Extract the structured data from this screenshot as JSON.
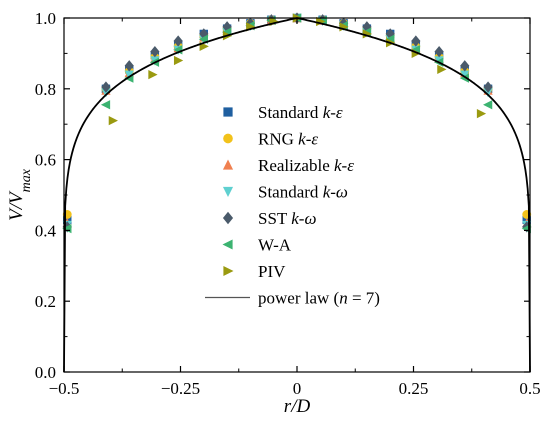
{
  "chart_data": {
    "type": "scatter",
    "title": "",
    "xlabel": "r/D",
    "ylabel": "V/V_max",
    "xlim": [
      -0.5,
      0.5
    ],
    "ylim": [
      0.0,
      1.0
    ],
    "x_ticks": [
      "-0.5",
      "-0.25",
      "0",
      "0.25",
      "0.5"
    ],
    "y_ticks": [
      "0.0",
      "0.2",
      "0.4",
      "0.6",
      "0.8",
      "1.0"
    ],
    "grid": false,
    "legend_position": "center",
    "series": [
      {
        "name": "Standard k-ε",
        "marker": "square",
        "color": "#1f5fa0",
        "x": [
          -0.493,
          -0.41,
          -0.36,
          -0.305,
          -0.255,
          -0.2,
          -0.15,
          -0.1,
          -0.055,
          0.0,
          0.055,
          0.1,
          0.15,
          0.2,
          0.255,
          0.305,
          0.36,
          0.41,
          0.493
        ],
        "y": [
          0.43,
          0.8,
          0.855,
          0.895,
          0.925,
          0.955,
          0.97,
          0.985,
          0.995,
          1.0,
          0.995,
          0.985,
          0.97,
          0.955,
          0.925,
          0.895,
          0.855,
          0.8,
          0.43
        ]
      },
      {
        "name": "RNG k-ε",
        "marker": "circle",
        "color": "#f2c21b",
        "x": [
          -0.493,
          -0.41,
          -0.36,
          -0.305,
          -0.255,
          -0.2,
          -0.15,
          -0.1,
          -0.055,
          0.0,
          0.055,
          0.1,
          0.15,
          0.2,
          0.255,
          0.305,
          0.36,
          0.41,
          0.493
        ],
        "y": [
          0.445,
          0.8,
          0.85,
          0.89,
          0.92,
          0.95,
          0.97,
          0.985,
          0.995,
          1.0,
          0.995,
          0.985,
          0.97,
          0.95,
          0.92,
          0.89,
          0.85,
          0.8,
          0.445
        ]
      },
      {
        "name": "Realizable k-ε",
        "marker": "triangle-up",
        "color": "#f08050",
        "x": [
          -0.493,
          -0.41,
          -0.36,
          -0.305,
          -0.255,
          -0.2,
          -0.15,
          -0.1,
          -0.055,
          0.0,
          0.055,
          0.1,
          0.15,
          0.2,
          0.255,
          0.305,
          0.36,
          0.41,
          0.493
        ],
        "y": [
          0.42,
          0.795,
          0.845,
          0.885,
          0.915,
          0.945,
          0.965,
          0.98,
          0.993,
          1.0,
          0.993,
          0.98,
          0.965,
          0.945,
          0.915,
          0.885,
          0.845,
          0.795,
          0.42
        ]
      },
      {
        "name": "Standard k-ω",
        "marker": "triangle-down",
        "color": "#5fd0d0",
        "x": [
          -0.493,
          -0.41,
          -0.36,
          -0.305,
          -0.255,
          -0.2,
          -0.15,
          -0.1,
          -0.055,
          0.0,
          0.055,
          0.1,
          0.15,
          0.2,
          0.255,
          0.305,
          0.36,
          0.41,
          0.493
        ],
        "y": [
          0.415,
          0.79,
          0.84,
          0.88,
          0.91,
          0.94,
          0.96,
          0.978,
          0.992,
          1.0,
          0.992,
          0.978,
          0.96,
          0.94,
          0.91,
          0.88,
          0.84,
          0.79,
          0.415
        ]
      },
      {
        "name": "SST k-ω",
        "marker": "diamond",
        "color": "#4a5a6a",
        "x": [
          -0.493,
          -0.41,
          -0.36,
          -0.305,
          -0.255,
          -0.2,
          -0.15,
          -0.1,
          -0.055,
          0.0,
          0.055,
          0.1,
          0.15,
          0.2,
          0.255,
          0.305,
          0.36,
          0.41,
          0.493
        ],
        "y": [
          0.41,
          0.805,
          0.865,
          0.905,
          0.935,
          0.955,
          0.975,
          0.985,
          0.995,
          1.0,
          0.995,
          0.985,
          0.975,
          0.955,
          0.935,
          0.905,
          0.865,
          0.805,
          0.41
        ]
      },
      {
        "name": "W-A",
        "marker": "triangle-left",
        "color": "#3cb371",
        "x": [
          -0.493,
          -0.41,
          -0.36,
          -0.305,
          -0.255,
          -0.2,
          -0.15,
          -0.1,
          -0.055,
          0.0,
          0.055,
          0.1,
          0.15,
          0.2,
          0.255,
          0.305,
          0.36,
          0.41,
          0.493
        ],
        "y": [
          0.405,
          0.755,
          0.83,
          0.875,
          0.91,
          0.94,
          0.96,
          0.978,
          0.993,
          1.0,
          0.993,
          0.978,
          0.96,
          0.94,
          0.91,
          0.875,
          0.83,
          0.755,
          0.405
        ]
      },
      {
        "name": "PIV",
        "marker": "triangle-right",
        "color": "#9a9a10",
        "x": [
          -0.395,
          -0.31,
          -0.255,
          -0.2,
          -0.15,
          -0.1,
          -0.05,
          0.0,
          0.05,
          0.1,
          0.15,
          0.2,
          0.255,
          0.31,
          0.395
        ],
        "y": [
          0.71,
          0.84,
          0.88,
          0.92,
          0.95,
          0.975,
          0.99,
          1.0,
          0.99,
          0.975,
          0.955,
          0.93,
          0.9,
          0.855,
          0.73
        ]
      },
      {
        "name": "power law (n = 7)",
        "type": "line",
        "color": "#000000",
        "formula": "(1 - 2|r/D|)^(1/7)"
      }
    ]
  }
}
